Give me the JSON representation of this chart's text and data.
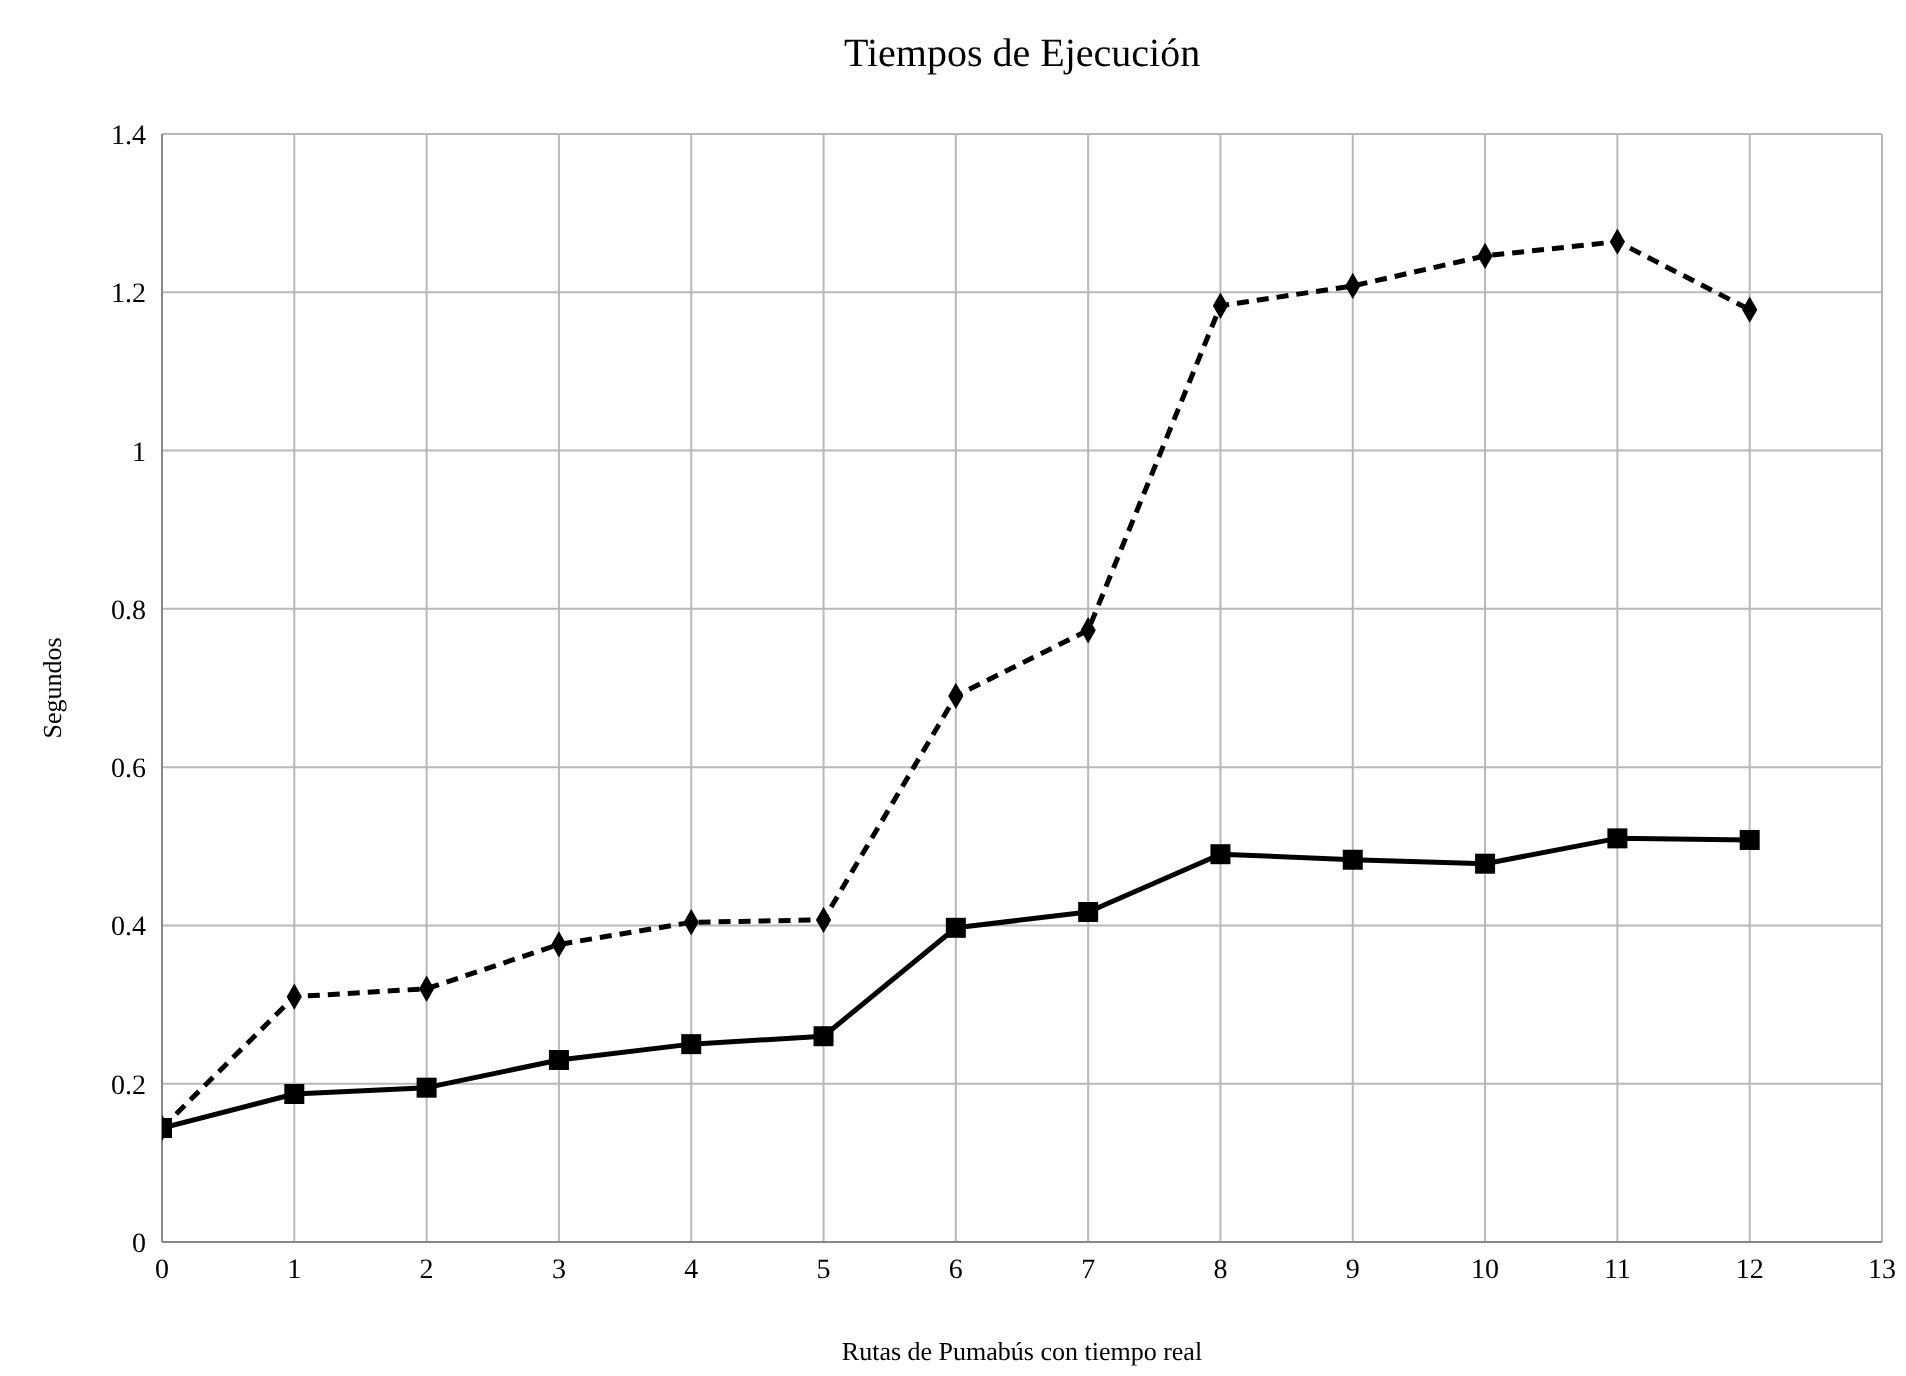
{
  "chart_data": {
    "type": "line",
    "title": "Tiempos de Ejecución",
    "xlabel": "Rutas de Pumabús con tiempo real",
    "ylabel": "Segundos",
    "x": [
      0,
      1,
      2,
      3,
      4,
      5,
      6,
      7,
      8,
      9,
      10,
      11,
      12
    ],
    "series": [
      {
        "color": "#000000",
        "marker": "diamond",
        "line_style": "dashed",
        "values": [
          0.144,
          0.31,
          0.32,
          0.376,
          0.404,
          0.407,
          0.69,
          0.773,
          1.183,
          1.208,
          1.246,
          1.264,
          1.178
        ]
      },
      {
        "color": "#000000",
        "marker": "square",
        "line_style": "solid",
        "values": [
          0.144,
          0.187,
          0.195,
          0.23,
          0.25,
          0.26,
          0.397,
          0.417,
          0.49,
          0.483,
          0.478,
          0.51,
          0.508
        ]
      }
    ],
    "xlim": [
      0,
      13
    ],
    "xticks": [
      0,
      1,
      2,
      3,
      4,
      5,
      6,
      7,
      8,
      9,
      10,
      11,
      12,
      13
    ],
    "ylim": [
      0,
      1.4
    ],
    "yticks": [
      0,
      0.2,
      0.4,
      0.6,
      0.8,
      1,
      1.2,
      1.4
    ],
    "grid": true,
    "legend": false
  }
}
